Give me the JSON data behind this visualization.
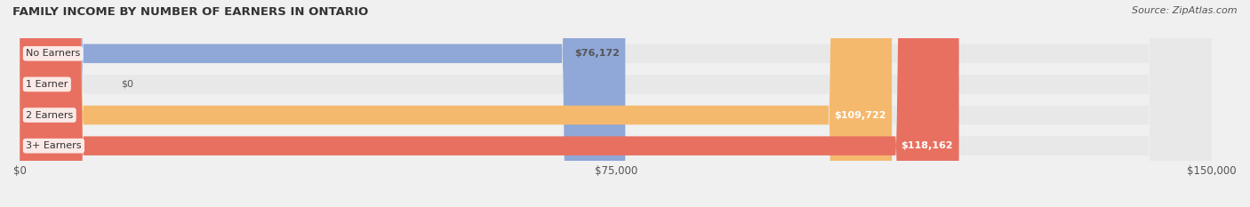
{
  "title": "FAMILY INCOME BY NUMBER OF EARNERS IN ONTARIO",
  "source": "Source: ZipAtlas.com",
  "categories": [
    "No Earners",
    "1 Earner",
    "2 Earners",
    "3+ Earners"
  ],
  "values": [
    76172,
    0,
    109722,
    118162
  ],
  "bar_colors": [
    "#8fa8d8",
    "#f4a0b0",
    "#f5b96e",
    "#e87060"
  ],
  "label_colors": [
    "#555555",
    "#555555",
    "#ffffff",
    "#ffffff"
  ],
  "xlim": [
    0,
    150000
  ],
  "xticks": [
    0,
    75000,
    150000
  ],
  "xtick_labels": [
    "$0",
    "$75,000",
    "$150,000"
  ],
  "background_color": "#f0f0f0",
  "bar_bg_color": "#e8e8e8",
  "figsize": [
    14.06,
    2.33
  ],
  "dpi": 100
}
